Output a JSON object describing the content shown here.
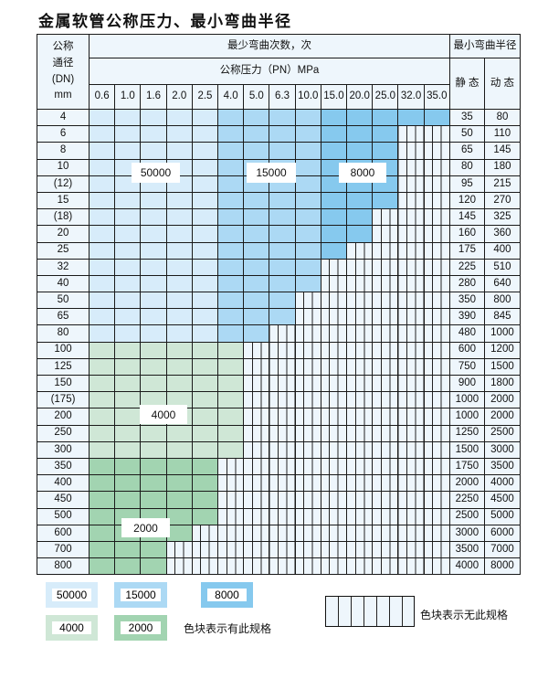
{
  "title": "金属软管公称压力、最小弯曲半径",
  "header": {
    "dn_label": [
      "公称",
      "通径",
      "(DN)",
      "mm"
    ],
    "cycles_label": "最少弯曲次数，次",
    "pressure_label": "公称压力（PN）MPa",
    "radius_label": "最小弯曲半径",
    "static_label": "静 态",
    "dynamic_label": "动 态",
    "pressures": [
      "0.6",
      "1.0",
      "1.6",
      "2.0",
      "2.5",
      "4.0",
      "5.0",
      "6.3",
      "10.0",
      "15.0",
      "20.0",
      "25.0",
      "32.0",
      "35.0"
    ]
  },
  "colors": {
    "A": "#d7ecfa",
    "B": "#acd9f4",
    "C": "#86c9ee",
    "D": "#cfe7d6",
    "E": "#a2d4b1",
    "X": "#eef6fc"
  },
  "rows": [
    {
      "dn": "4",
      "static": "35",
      "dynamic": "80",
      "cells": "AAAAABBBBCCCCC"
    },
    {
      "dn": "6",
      "static": "50",
      "dynamic": "110",
      "cells": "AAAAABBBBCCCXX"
    },
    {
      "dn": "8",
      "static": "65",
      "dynamic": "145",
      "cells": "AAAAABBBBCCCXX"
    },
    {
      "dn": "10",
      "static": "80",
      "dynamic": "180",
      "cells": "AAAAABBBBCCCXX"
    },
    {
      "dn": "(12)",
      "static": "95",
      "dynamic": "215",
      "cells": "AAAAABBBBCCCXX"
    },
    {
      "dn": "15",
      "static": "120",
      "dynamic": "270",
      "cells": "AAAAABBBBCCCXX"
    },
    {
      "dn": "(18)",
      "static": "145",
      "dynamic": "325",
      "cells": "AAAAABBBBCCXXX"
    },
    {
      "dn": "20",
      "static": "160",
      "dynamic": "360",
      "cells": "AAAAABBBBCCXXX"
    },
    {
      "dn": "25",
      "static": "175",
      "dynamic": "400",
      "cells": "AAAAABBBBCXXXX"
    },
    {
      "dn": "32",
      "static": "225",
      "dynamic": "510",
      "cells": "AAAAABBBBXXXXX"
    },
    {
      "dn": "40",
      "static": "280",
      "dynamic": "640",
      "cells": "AAAAABBBBXXXXX"
    },
    {
      "dn": "50",
      "static": "350",
      "dynamic": "800",
      "cells": "AAAAABBBXXXXXX"
    },
    {
      "dn": "65",
      "static": "390",
      "dynamic": "845",
      "cells": "AAAAABBBXXXXXX"
    },
    {
      "dn": "80",
      "static": "480",
      "dynamic": "1000",
      "cells": "AAAAABBXXXXXXX"
    },
    {
      "dn": "100",
      "static": "600",
      "dynamic": "1200",
      "cells": "DDDDDDXXXXXXXX"
    },
    {
      "dn": "125",
      "static": "750",
      "dynamic": "1500",
      "cells": "DDDDDDXXXXXXXX"
    },
    {
      "dn": "150",
      "static": "900",
      "dynamic": "1800",
      "cells": "DDDDDDXXXXXXXX"
    },
    {
      "dn": "(175)",
      "static": "1000",
      "dynamic": "2000",
      "cells": "DDDDDDXXXXXXXX"
    },
    {
      "dn": "200",
      "static": "1000",
      "dynamic": "2000",
      "cells": "DDDDDDXXXXXXXX"
    },
    {
      "dn": "250",
      "static": "1250",
      "dynamic": "2500",
      "cells": "DDDDDDXXXXXXXX"
    },
    {
      "dn": "300",
      "static": "1500",
      "dynamic": "3000",
      "cells": "DDDDDDXXXXXXXX"
    },
    {
      "dn": "350",
      "static": "1750",
      "dynamic": "3500",
      "cells": "EEEEEXXXXXXXXX"
    },
    {
      "dn": "400",
      "static": "2000",
      "dynamic": "4000",
      "cells": "EEEEEXXXXXXXXX"
    },
    {
      "dn": "450",
      "static": "2250",
      "dynamic": "4500",
      "cells": "EEEEEXXXXXXXXX"
    },
    {
      "dn": "500",
      "static": "2500",
      "dynamic": "5000",
      "cells": "EEEEEXXXXXXXXX"
    },
    {
      "dn": "600",
      "static": "3000",
      "dynamic": "6000",
      "cells": "EEEEXXXXXXXXXX"
    },
    {
      "dn": "700",
      "static": "3500",
      "dynamic": "7000",
      "cells": "EEEXXXXXXXXXXX"
    },
    {
      "dn": "800",
      "static": "4000",
      "dynamic": "8000",
      "cells": "EEEXXXXXXXXXXX"
    }
  ],
  "region_labels": {
    "A": "50000",
    "B": "15000",
    "C": "8000",
    "D": "4000",
    "E": "2000"
  },
  "legend": {
    "items": [
      {
        "code": "A",
        "value": "50000"
      },
      {
        "code": "B",
        "value": "15000"
      },
      {
        "code": "C",
        "value": "8000"
      },
      {
        "code": "D",
        "value": "4000"
      },
      {
        "code": "E",
        "value": "2000"
      }
    ],
    "has_spec_note": "色块表示有此规格",
    "no_spec_note": "色块表示无此规格"
  }
}
